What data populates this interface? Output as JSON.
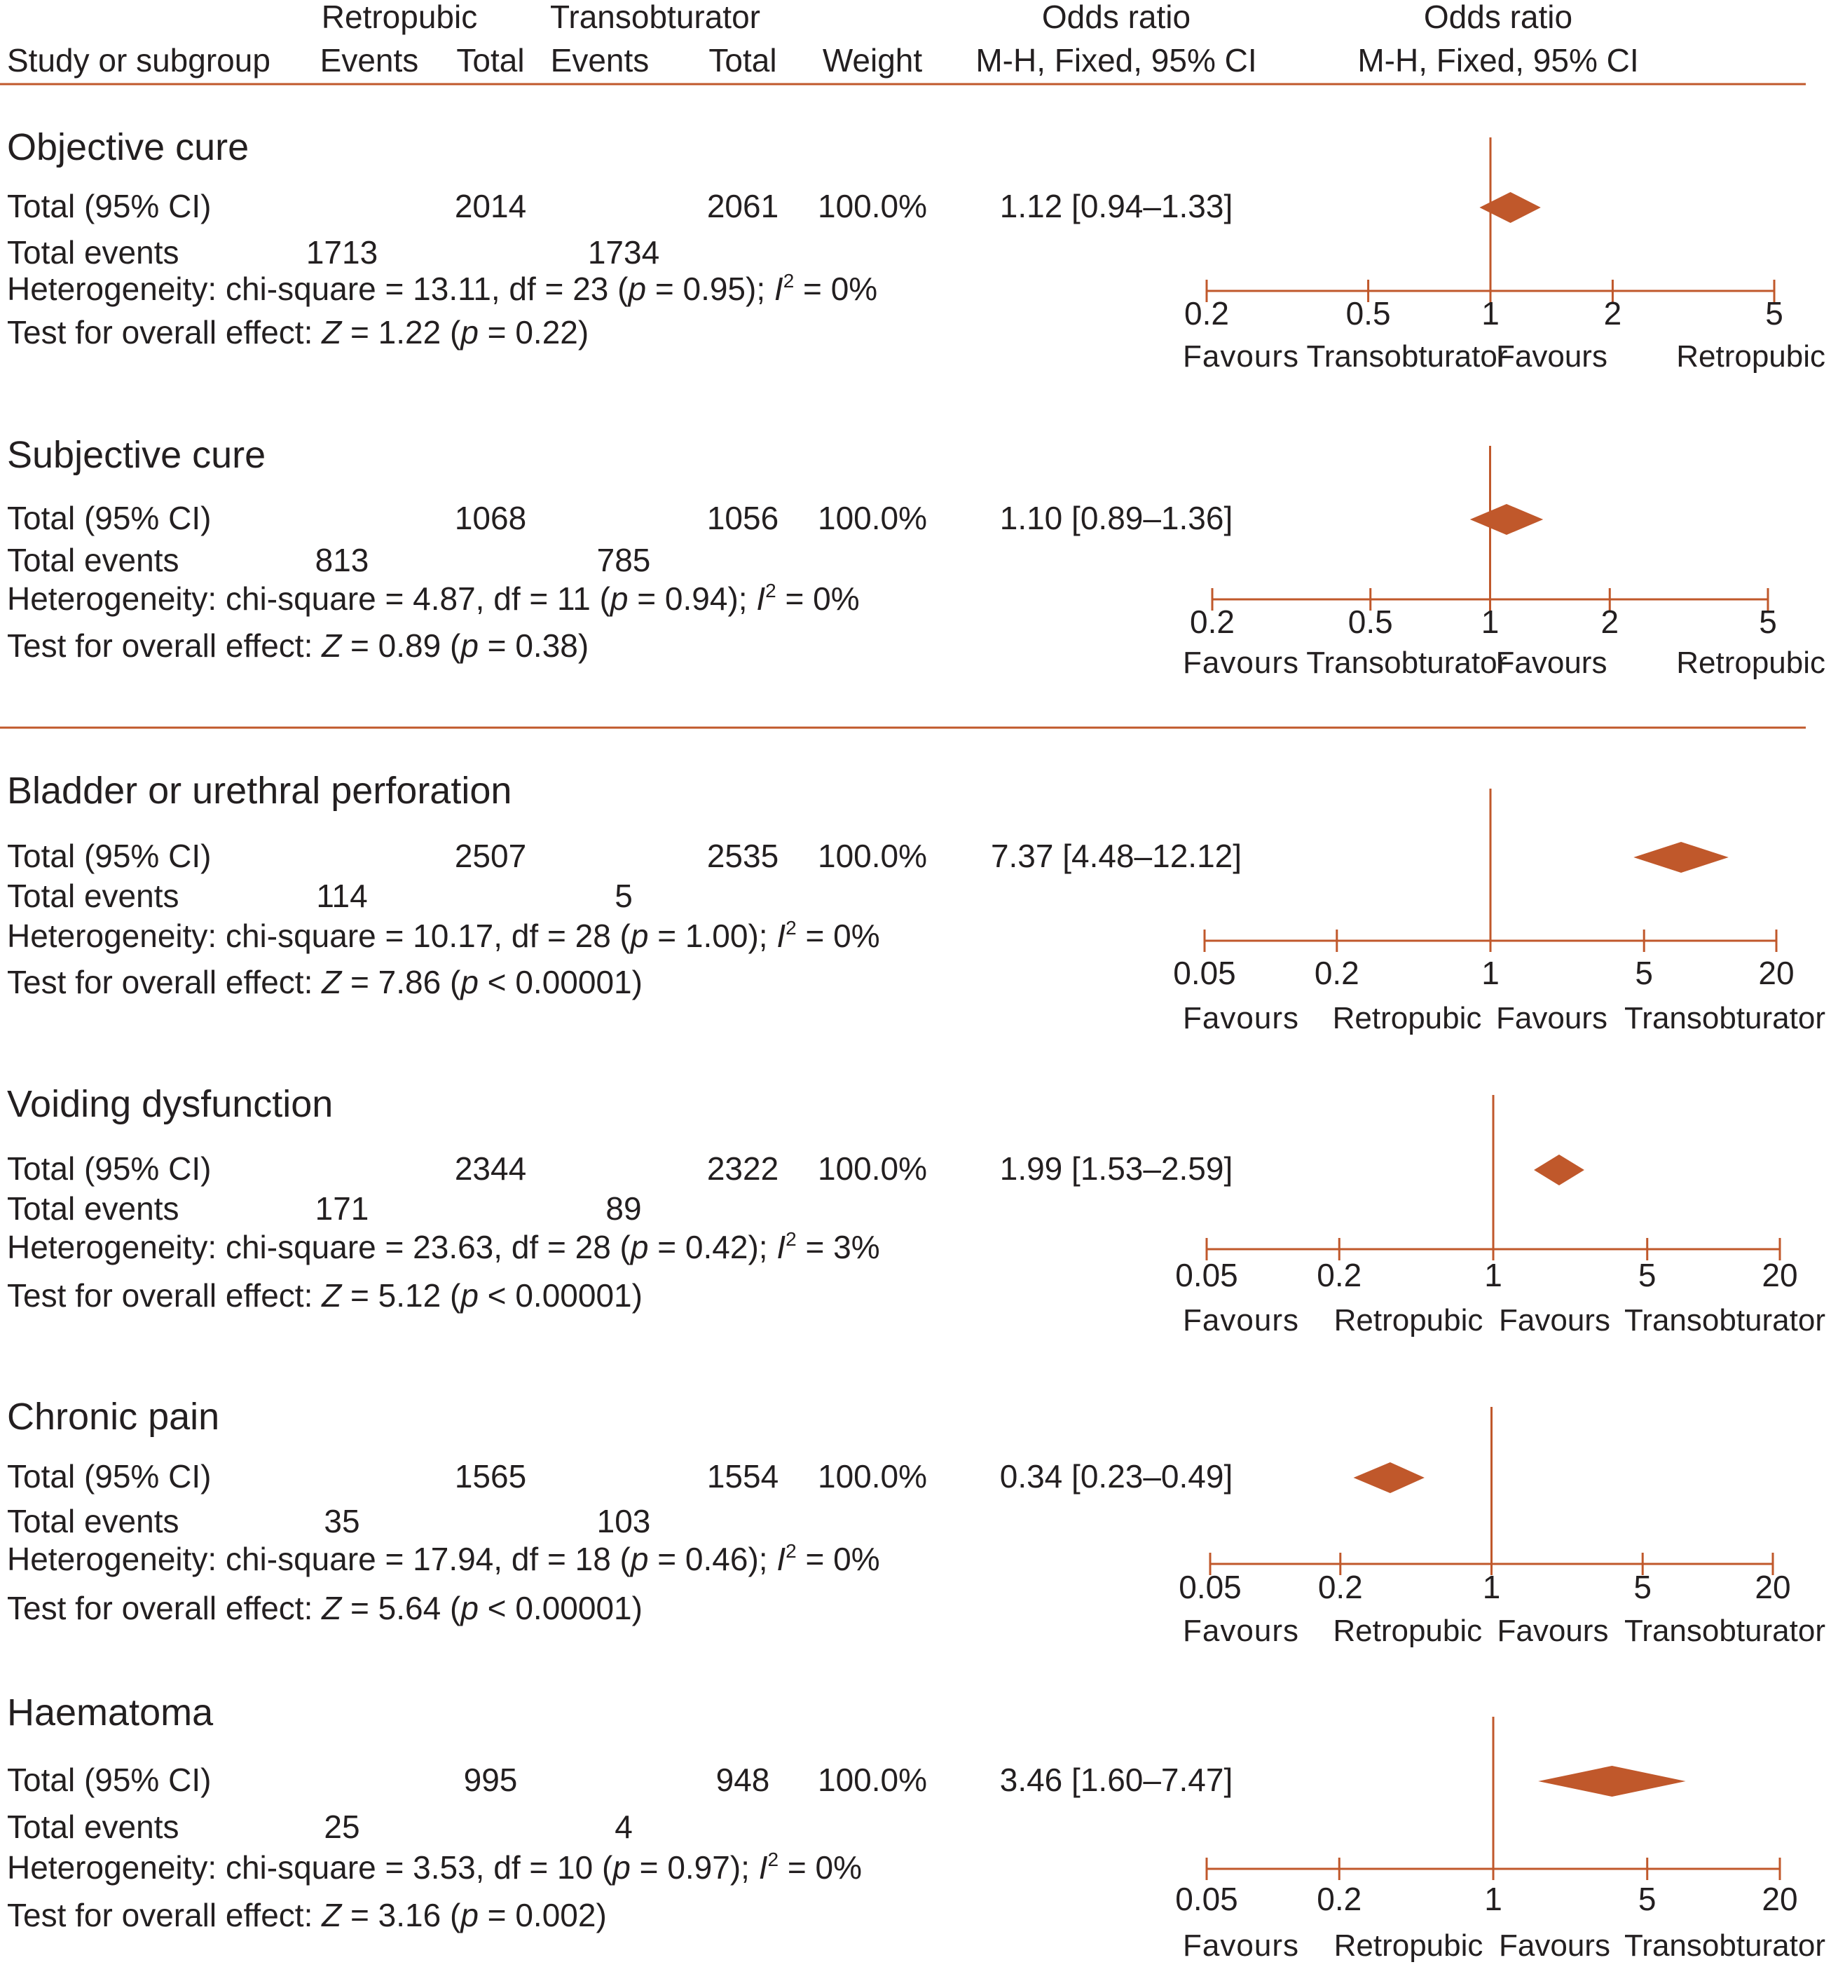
{
  "colors": {
    "accent": "#c0582b",
    "text": "#231f20",
    "background": "#ffffff"
  },
  "header": {
    "col_study": "Study or subgroup",
    "group_retropubic": "Retropubic",
    "group_transobturator": "Transobturator",
    "events": "Events",
    "total": "Total",
    "weight": "Weight",
    "or_title": "Odds ratio",
    "or_method": "M-H, Fixed, 95% CI"
  },
  "chart_data": {
    "type": "forest",
    "axis_scale": "log",
    "reference_line": 1,
    "subgroups": [
      {
        "title": "Objective cure",
        "total_label": "Total (95% CI)",
        "retro_total": "2014",
        "trans_total": "2061",
        "weight": "100.0%",
        "or_text": "1.12 [0.94–1.33]",
        "or": 1.12,
        "ci": [
          0.94,
          1.33
        ],
        "events_label": "Total events",
        "retro_events": "1713",
        "trans_events": "1734",
        "heterogeneity": {
          "chi": "13.11",
          "df": "23",
          "p": "0.95",
          "i2": "0%"
        },
        "overall": {
          "z": "1.22",
          "op": "=",
          "p": "0.22"
        },
        "axis_ticks": [
          0.2,
          0.5,
          1,
          2,
          5
        ],
        "tick_labels": [
          "0.2",
          "0.5",
          "1",
          "2",
          "5"
        ],
        "favours_left": [
          "Favours",
          "Transobturator"
        ],
        "favours_right": [
          "Favours",
          "Retropubic"
        ]
      },
      {
        "title": "Subjective cure",
        "total_label": "Total (95% CI)",
        "retro_total": "1068",
        "trans_total": "1056",
        "weight": "100.0%",
        "or_text": "1.10 [0.89–1.36]",
        "or": 1.1,
        "ci": [
          0.89,
          1.36
        ],
        "events_label": "Total events",
        "retro_events": "813",
        "trans_events": "785",
        "heterogeneity": {
          "chi": "4.87",
          "df": "11",
          "p": "0.94",
          "i2": "0%"
        },
        "overall": {
          "z": "0.89",
          "op": "=",
          "p": "0.38"
        },
        "axis_ticks": [
          0.2,
          0.5,
          1,
          2,
          5
        ],
        "tick_labels": [
          "0.2",
          "0.5",
          "1",
          "2",
          "5"
        ],
        "favours_left": [
          "Favours",
          "Transobturator"
        ],
        "favours_right": [
          "Favours",
          "Retropubic"
        ]
      },
      {
        "title": "Bladder or urethral perforation",
        "total_label": "Total (95% CI)",
        "retro_total": "2507",
        "trans_total": "2535",
        "weight": "100.0%",
        "or_text": "7.37 [4.48–12.12]",
        "or": 7.37,
        "ci": [
          4.48,
          12.12
        ],
        "events_label": "Total events",
        "retro_events": "114",
        "trans_events": "5",
        "heterogeneity": {
          "chi": "10.17",
          "df": "28",
          "p": "1.00",
          "i2": "0%"
        },
        "overall": {
          "z": "7.86",
          "op": "<",
          "p": "0.00001"
        },
        "axis_ticks": [
          0.05,
          0.2,
          1,
          5,
          20
        ],
        "tick_labels": [
          "0.05",
          "0.2",
          "1",
          "5",
          "20"
        ],
        "favours_left": [
          "Favours",
          "Retropubic"
        ],
        "favours_right": [
          "Favours",
          "Transobturator"
        ]
      },
      {
        "title": "Voiding dysfunction",
        "total_label": "Total (95% CI)",
        "retro_total": "2344",
        "trans_total": "2322",
        "weight": "100.0%",
        "or_text": "1.99 [1.53–2.59]",
        "or": 1.99,
        "ci": [
          1.53,
          2.59
        ],
        "events_label": "Total events",
        "retro_events": "171",
        "trans_events": "89",
        "heterogeneity": {
          "chi": "23.63",
          "df": "28",
          "p": "0.42",
          "i2": "3%"
        },
        "overall": {
          "z": "5.12",
          "op": "<",
          "p": "0.00001"
        },
        "axis_ticks": [
          0.05,
          0.2,
          1,
          5,
          20
        ],
        "tick_labels": [
          "0.05",
          "0.2",
          "1",
          "5",
          "20"
        ],
        "favours_left": [
          "Favours",
          "Retropubic"
        ],
        "favours_right": [
          "Favours",
          "Transobturator"
        ]
      },
      {
        "title": "Chronic pain",
        "total_label": "Total (95% CI)",
        "retro_total": "1565",
        "trans_total": "1554",
        "weight": "100.0%",
        "or_text": "0.34 [0.23–0.49]",
        "or": 0.34,
        "ci": [
          0.23,
          0.49
        ],
        "events_label": "Total events",
        "retro_events": "35",
        "trans_events": "103",
        "heterogeneity": {
          "chi": "17.94",
          "df": "18",
          "p": "0.46",
          "i2": "0%"
        },
        "overall": {
          "z": "5.64",
          "op": "<",
          "p": "0.00001"
        },
        "axis_ticks": [
          0.05,
          0.2,
          1,
          5,
          20
        ],
        "tick_labels": [
          "0.05",
          "0.2",
          "1",
          "5",
          "20"
        ],
        "favours_left": [
          "Favours",
          "Retropubic"
        ],
        "favours_right": [
          "Favours",
          "Transobturator"
        ]
      },
      {
        "title": "Haematoma",
        "total_label": "Total (95% CI)",
        "retro_total": "995",
        "trans_total": "948",
        "weight": "100.0%",
        "or_text": "3.46 [1.60–7.47]",
        "or": 3.46,
        "ci": [
          1.6,
          7.47
        ],
        "events_label": "Total events",
        "retro_events": "25",
        "trans_events": "4",
        "heterogeneity": {
          "chi": "3.53",
          "df": "10",
          "p": "0.97",
          "i2": "0%"
        },
        "overall": {
          "z": "3.16",
          "op": "=",
          "p": "0.002"
        },
        "axis_ticks": [
          0.05,
          0.2,
          1,
          5,
          20
        ],
        "tick_labels": [
          "0.05",
          "0.2",
          "1",
          "5",
          "20"
        ],
        "favours_left": [
          "Favours",
          "Retropubic"
        ],
        "favours_right": [
          "Favours",
          "Transobturator"
        ]
      }
    ]
  }
}
